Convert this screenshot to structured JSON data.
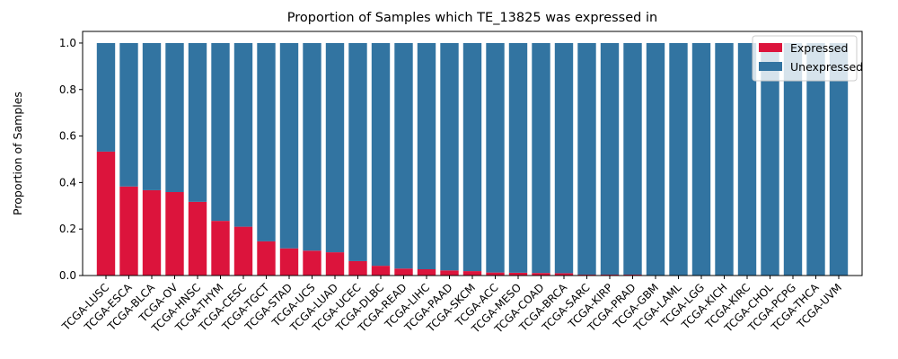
{
  "chart_data": {
    "type": "bar",
    "stacked": true,
    "title": "Proportion of Samples which TE_13825 was expressed in",
    "xlabel": "",
    "ylabel": "Proportion of Samples",
    "ylim": [
      0,
      1.05
    ],
    "yticks": [
      0.0,
      0.2,
      0.4,
      0.6,
      0.8,
      1.0
    ],
    "ytick_labels": [
      "0.0",
      "0.2",
      "0.4",
      "0.6",
      "0.8",
      "1.0"
    ],
    "legend_position": "top-right",
    "grid": false,
    "categories": [
      "TCGA-LUSC",
      "TCGA-ESCA",
      "TCGA-BLCA",
      "TCGA-OV",
      "TCGA-HNSC",
      "TCGA-THYM",
      "TCGA-CESC",
      "TCGA-TGCT",
      "TCGA-STAD",
      "TCGA-UCS",
      "TCGA-LUAD",
      "TCGA-UCEC",
      "TCGA-DLBC",
      "TCGA-READ",
      "TCGA-LIHC",
      "TCGA-PAAD",
      "TCGA-SKCM",
      "TCGA-ACC",
      "TCGA-MESO",
      "TCGA-COAD",
      "TCGA-BRCA",
      "TCGA-SARC",
      "TCGA-KIRP",
      "TCGA-PRAD",
      "TCGA-GBM",
      "TCGA-LAML",
      "TCGA-LGG",
      "TCGA-KICH",
      "TCGA-KIRC",
      "TCGA-CHOL",
      "TCGA-PCPG",
      "TCGA-THCA",
      "TCGA-UVM"
    ],
    "series": [
      {
        "name": "Expressed",
        "color": "#dc143c",
        "values": [
          0.533,
          0.383,
          0.367,
          0.359,
          0.317,
          0.235,
          0.21,
          0.147,
          0.117,
          0.107,
          0.1,
          0.062,
          0.042,
          0.03,
          0.027,
          0.022,
          0.019,
          0.013,
          0.012,
          0.011,
          0.01,
          0.004,
          0.004,
          0.004,
          0,
          0,
          0,
          0,
          0,
          0,
          0,
          0,
          0
        ]
      },
      {
        "name": "Unexpressed",
        "color": "#3274a1",
        "values": [
          0.467,
          0.617,
          0.633,
          0.641,
          0.683,
          0.765,
          0.79,
          0.853,
          0.883,
          0.893,
          0.9,
          0.938,
          0.958,
          0.97,
          0.973,
          0.978,
          0.981,
          0.987,
          0.988,
          0.989,
          0.99,
          0.996,
          0.996,
          0.996,
          1,
          1,
          1,
          1,
          1,
          1,
          1,
          1,
          1
        ]
      }
    ]
  }
}
